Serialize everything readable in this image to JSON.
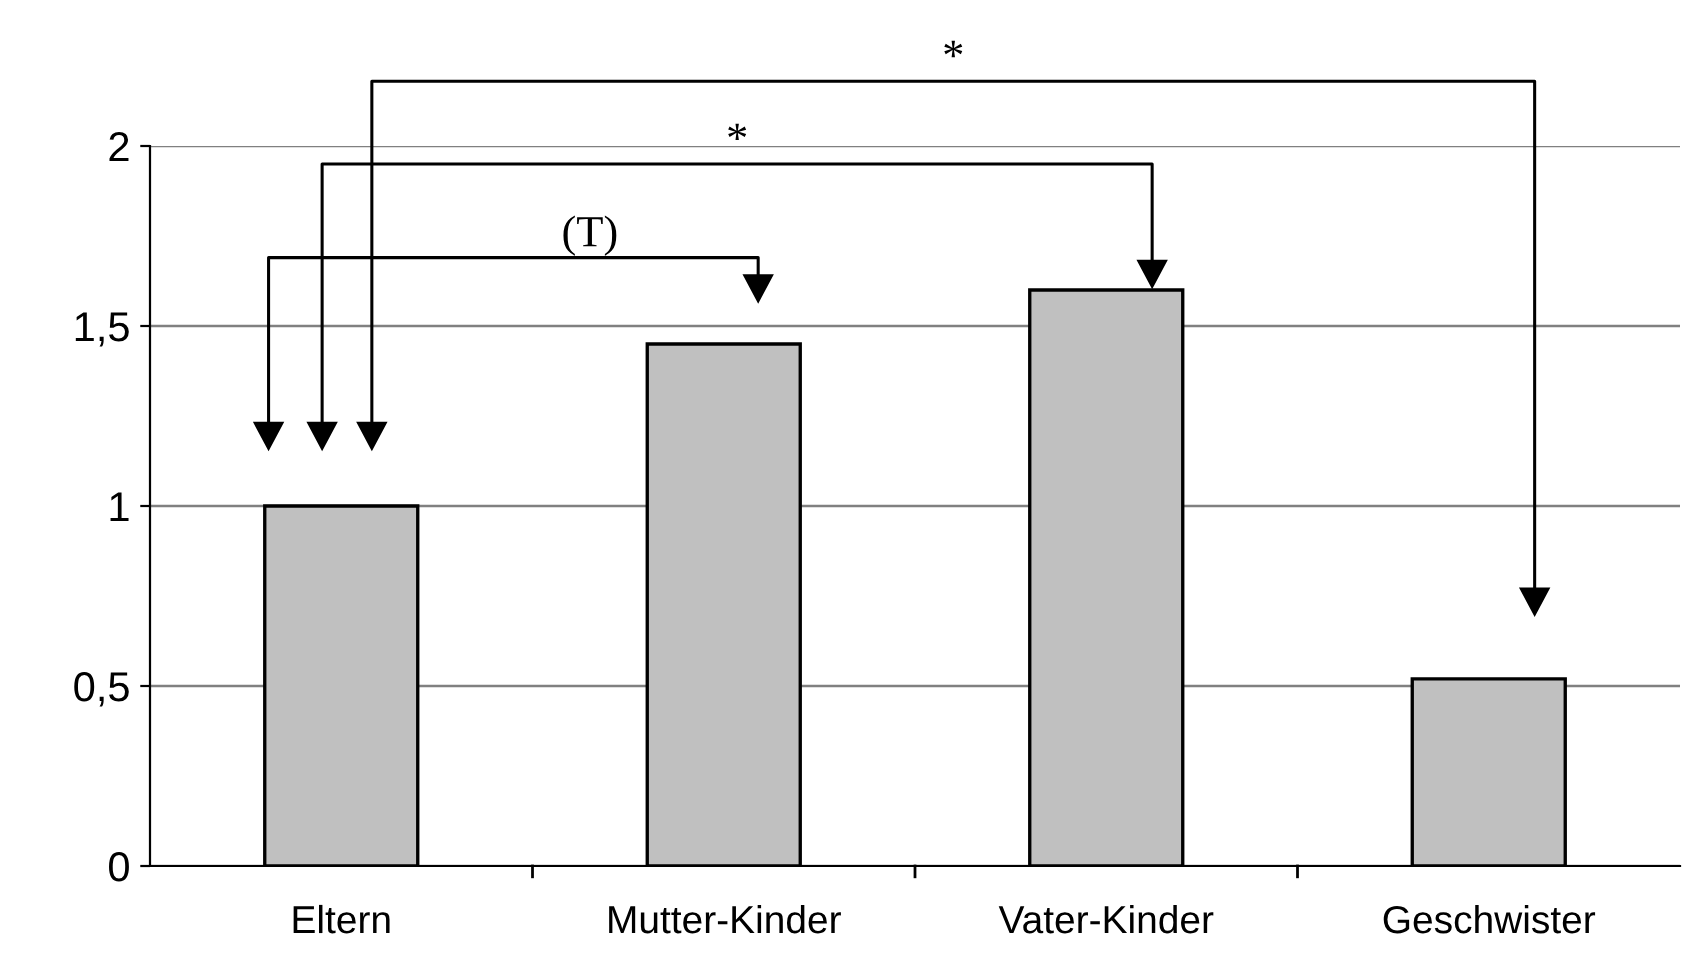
{
  "chart_data": {
    "type": "bar",
    "categories": [
      "Eltern",
      "Mutter-Kinder",
      "Vater-Kinder",
      "Geschwister"
    ],
    "values": [
      1.0,
      1.45,
      1.6,
      0.52
    ],
    "color": "#c0c0c0",
    "ylim": [
      0,
      2
    ],
    "yticks": [
      0,
      {
        "value": 0.5,
        "label": "0,5"
      },
      1,
      {
        "value": 1.5,
        "label": "1,5"
      },
      2
    ],
    "grid": "y",
    "annotations": [
      "(T)",
      "*",
      "*"
    ]
  }
}
